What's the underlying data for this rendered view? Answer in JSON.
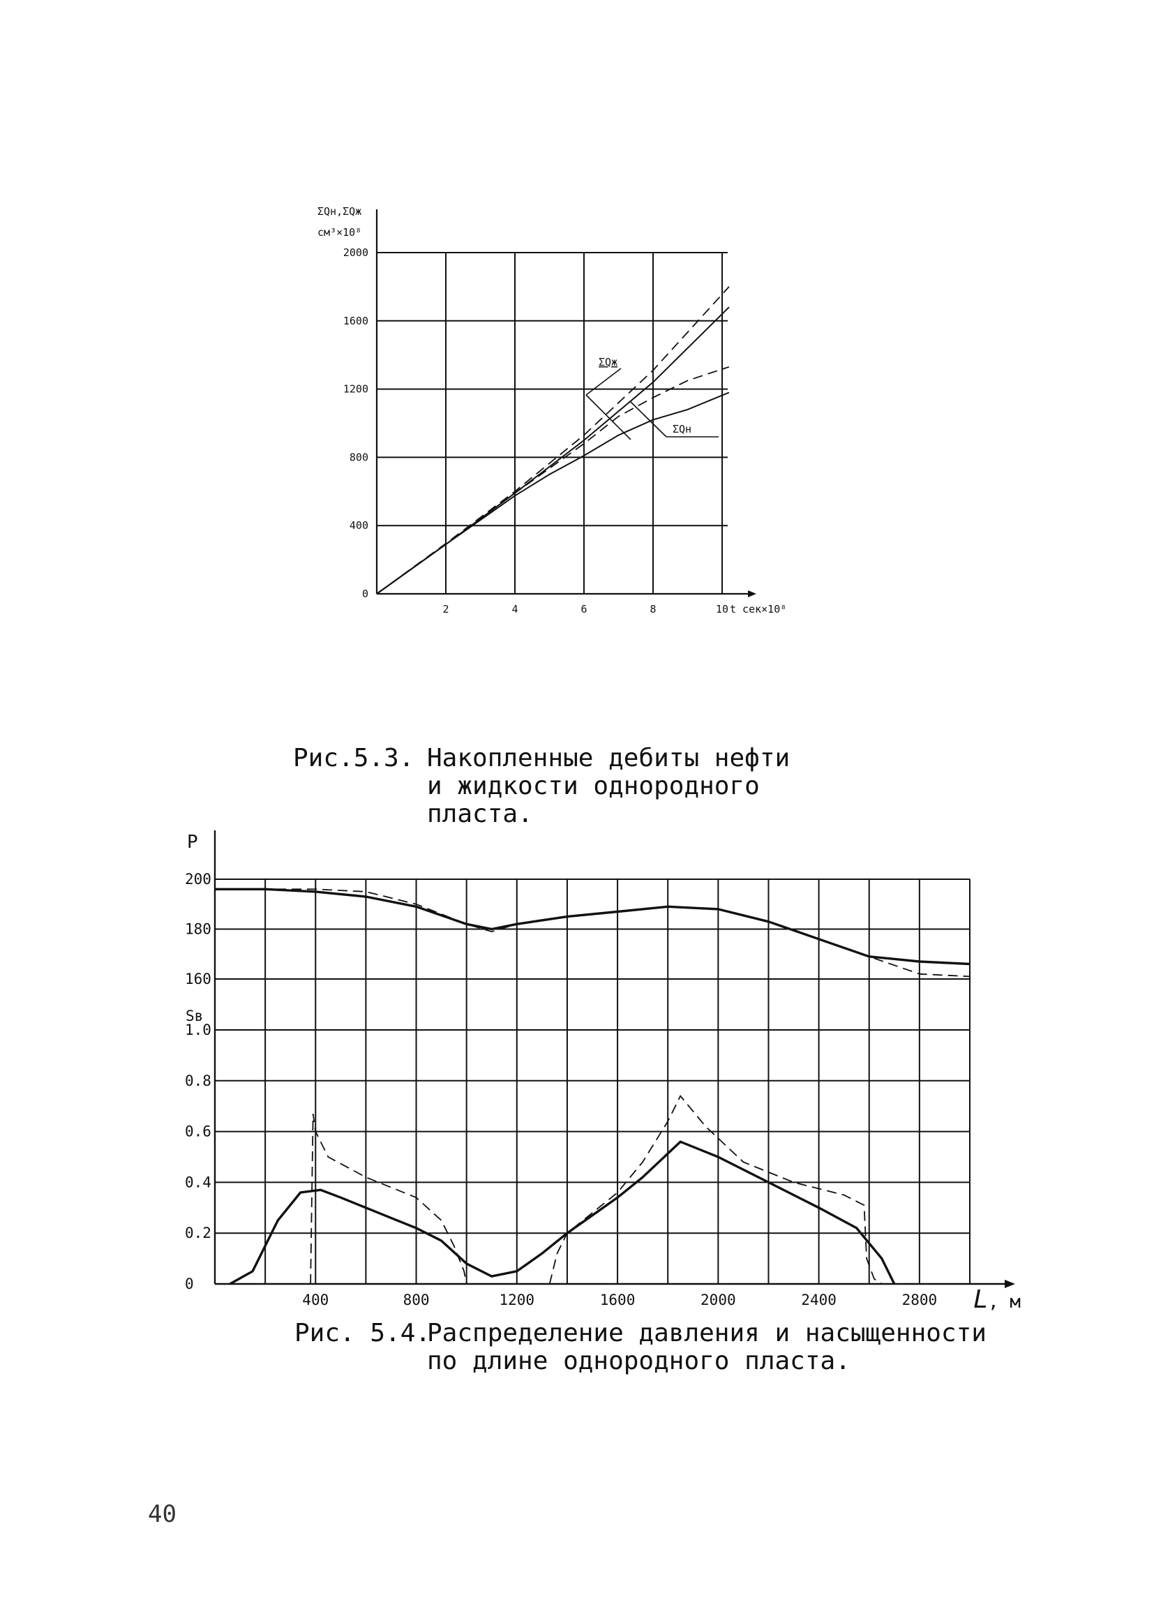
{
  "page": {
    "number": "40"
  },
  "fig53": {
    "caption": {
      "prefix": "Рис.5.3.",
      "lines": [
        "Накопленные дебиты нефти",
        "и жидкости однородного",
        "пласта."
      ]
    },
    "ylabel_line1": "ΣQн,ΣQж",
    "ylabel_line2": "см³×10⁸",
    "xlabel": "t сек×10⁸",
    "curve_labels": [
      "ΣQж",
      "ΣQн"
    ]
  },
  "fig54": {
    "caption": {
      "prefix": "Рис. 5.4.",
      "lines": [
        "Распределение давления и насыщенности",
        "по длине однородного пласта."
      ]
    },
    "p_label": "P",
    "s_label": "Sв",
    "xlabel_L": "L",
    "xlabel_unit": ", м"
  },
  "chart_data": [
    {
      "type": "line",
      "title": "Рис.5.3. Накопленные дебиты нефти и жидкости однородного пласта.",
      "xlabel": "t сек×10⁸",
      "ylabel": "ΣQн,ΣQж см³×10⁸",
      "xlim": [
        0,
        10
      ],
      "ylim": [
        0,
        2000
      ],
      "x_ticks": [
        "2",
        "4",
        "6",
        "8",
        "10"
      ],
      "y_ticks": [
        "0",
        "400",
        "800",
        "1200",
        "1600",
        "2000"
      ],
      "grid": true,
      "series": [
        {
          "name": "ΣQж",
          "style": "solid",
          "x": [
            0,
            2,
            4,
            6,
            8,
            10.2
          ],
          "y": [
            0,
            290,
            590,
            900,
            1240,
            1680
          ]
        },
        {
          "style": "dashed",
          "x": [
            0,
            2,
            4,
            6,
            8,
            10.2
          ],
          "y": [
            0,
            295,
            600,
            930,
            1310,
            1800
          ]
        },
        {
          "name": "ΣQн",
          "style": "solid",
          "x": [
            0,
            2,
            4,
            5,
            6,
            7,
            8,
            9,
            10.2
          ],
          "y": [
            0,
            290,
            575,
            700,
            810,
            930,
            1020,
            1080,
            1180
          ]
        },
        {
          "style": "dashed",
          "x": [
            0,
            2,
            4,
            6,
            7,
            8,
            9,
            10.2
          ],
          "y": [
            0,
            290,
            590,
            880,
            1040,
            1150,
            1250,
            1330
          ]
        }
      ]
    },
    {
      "type": "line",
      "title": "Рис. 5.4. Распределение давления и насыщенности по длине однородного пласта.",
      "xlabel": "L, м",
      "xlim": [
        0,
        3000
      ],
      "x_ticks": [
        "400",
        "800",
        "1200",
        "1600",
        "2000",
        "2400",
        "2800"
      ],
      "grid": true,
      "panels": [
        {
          "ylabel": "P",
          "ylim": [
            160,
            200
          ],
          "y_ticks": [
            "160",
            "180",
            "200"
          ],
          "series": [
            {
              "style": "solid-bold",
              "x": [
                0,
                200,
                400,
                600,
                800,
                1000,
                1100,
                1200,
                1400,
                1600,
                1800,
                2000,
                2200,
                2400,
                2600,
                2800,
                3000
              ],
              "y": [
                196,
                196,
                195,
                193,
                189,
                182,
                180,
                182,
                185,
                187,
                189,
                188,
                183,
                176,
                169,
                167,
                166
              ]
            },
            {
              "style": "dashed",
              "x": [
                0,
                200,
                400,
                600,
                800,
                1000,
                1100,
                1200,
                1400,
                1600,
                1800,
                2000,
                2200,
                2400,
                2600,
                2800,
                3000
              ],
              "y": [
                196,
                196,
                196,
                195,
                190,
                182,
                179,
                182,
                185,
                187,
                189,
                188,
                183,
                176,
                169,
                162,
                161
              ]
            }
          ]
        },
        {
          "ylabel": "Sв",
          "ylim": [
            0,
            1.0
          ],
          "y_ticks": [
            "0",
            "0.2",
            "0.4",
            "0.6",
            "0.8",
            "1.0"
          ],
          "series": [
            {
              "style": "solid-bold",
              "x": [
                60,
                150,
                250,
                340,
                420,
                500,
                600,
                700,
                800,
                900,
                1000,
                1100,
                1200,
                1300,
                1400,
                1500,
                1600,
                1700,
                1850,
                2000,
                2200,
                2400,
                2550,
                2650,
                2700
              ],
              "y": [
                0,
                0.05,
                0.25,
                0.36,
                0.37,
                0.34,
                0.3,
                0.26,
                0.22,
                0.17,
                0.08,
                0.03,
                0.05,
                0.12,
                0.2,
                0.27,
                0.34,
                0.42,
                0.56,
                0.5,
                0.4,
                0.3,
                0.22,
                0.1,
                0
              ]
            },
            {
              "style": "dashed",
              "x": [
                380,
                390,
                400,
                450,
                600,
                800,
                900,
                950,
                990,
                1000
              ],
              "y": [
                0,
                0.67,
                0.6,
                0.5,
                0.42,
                0.34,
                0.25,
                0.15,
                0.05,
                0
              ]
            },
            {
              "style": "dashed",
              "x": [
                1330,
                1360,
                1400,
                1500,
                1600,
                1700,
                1800,
                1850,
                1950,
                2100,
                2300,
                2500,
                2580,
                2590,
                2620,
                2650,
                2700
              ],
              "y": [
                0,
                0.12,
                0.2,
                0.28,
                0.36,
                0.48,
                0.64,
                0.74,
                0.62,
                0.48,
                0.4,
                0.35,
                0.31,
                0.1,
                0.02,
                0,
                0
              ]
            }
          ]
        }
      ]
    }
  ]
}
